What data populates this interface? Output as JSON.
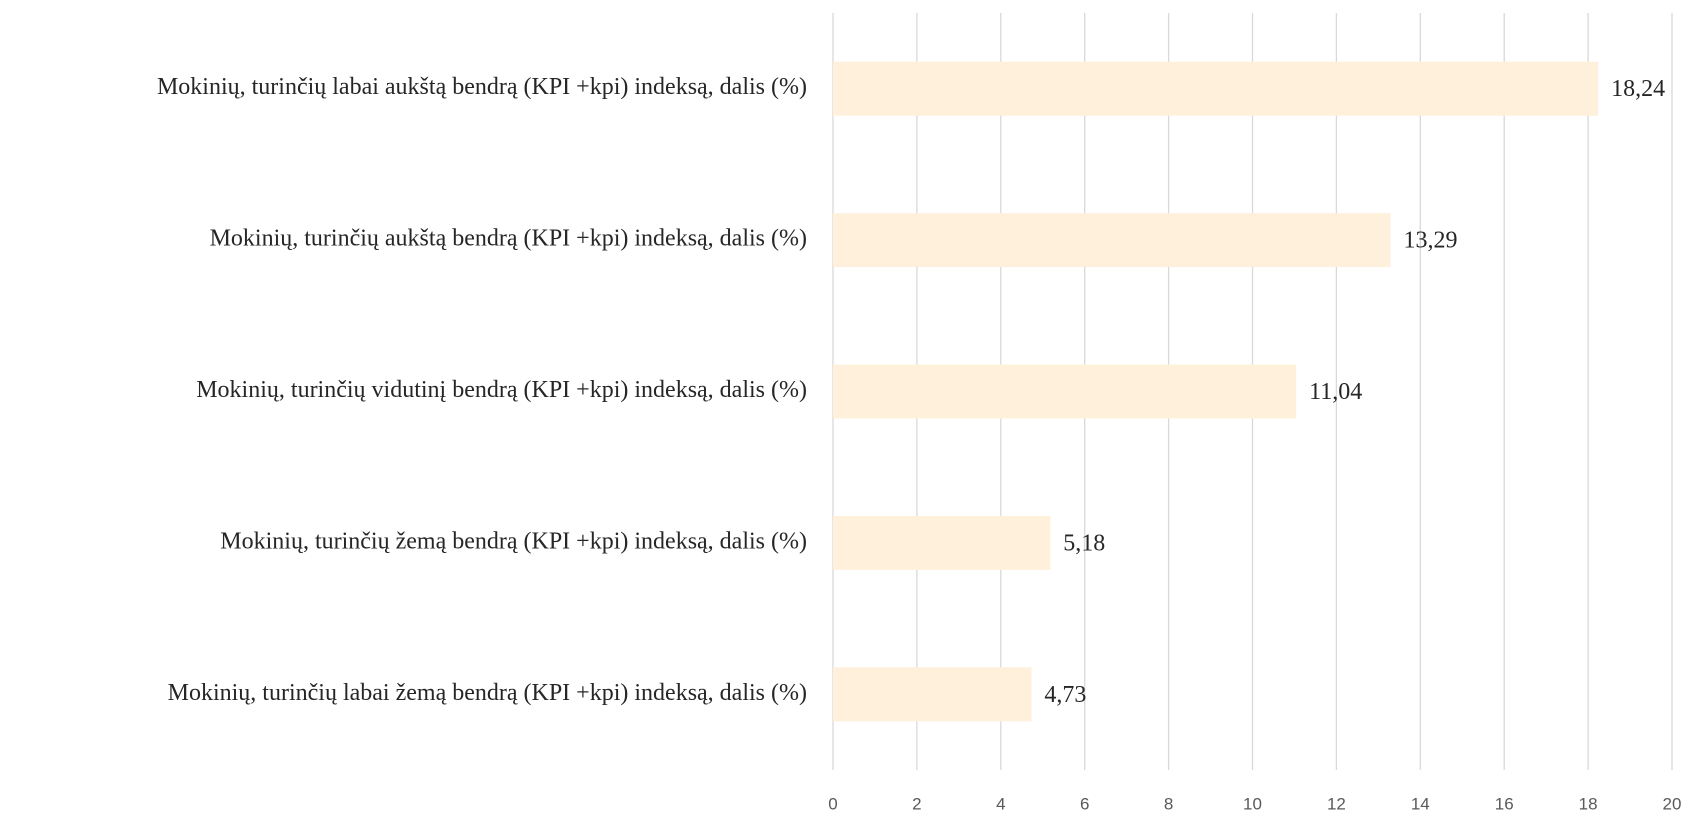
{
  "chart_data": {
    "type": "hbar",
    "categories": [
      "Mokinių, turinčių labai aukštą bendrą (KPI +kpi) indeksą, dalis (%)",
      "Mokinių, turinčių aukštą bendrą (KPI +kpi) indeksą, dalis (%)",
      "Mokinių, turinčių vidutinį bendrą (KPI +kpi) indeksą, dalis (%)",
      "Mokinių, turinčių žemą bendrą (KPI +kpi) indeksą, dalis (%)",
      "Mokinių, turinčių labai žemą bendrą (KPI +kpi) indeksą, dalis (%)"
    ],
    "values": [
      18.24,
      13.29,
      11.04,
      5.18,
      4.73
    ],
    "value_labels": [
      "18,24",
      "13,29",
      "11,04",
      "5,18",
      "4,73"
    ],
    "color": "#fff0db",
    "xlim": [
      0,
      20
    ],
    "xticks": [
      0,
      2,
      4,
      6,
      8,
      10,
      12,
      14,
      16,
      18,
      20
    ],
    "grid": true
  }
}
